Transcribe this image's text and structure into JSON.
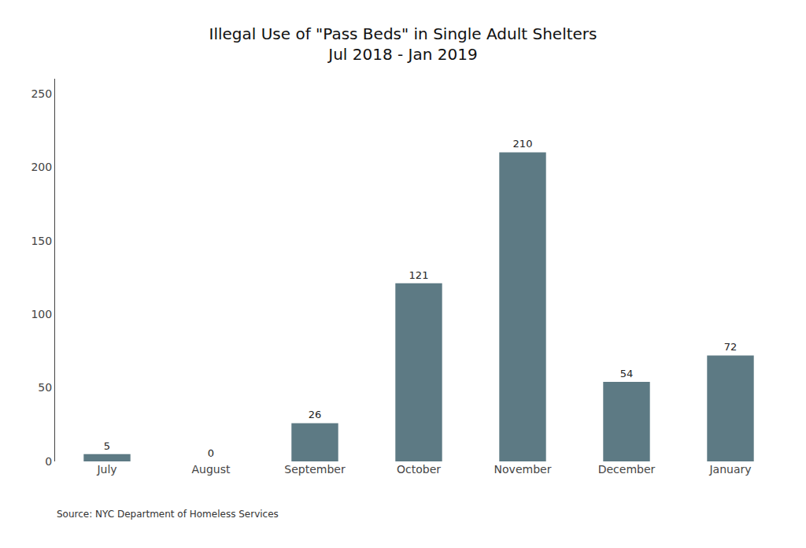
{
  "chart_data": {
    "type": "bar",
    "title": "Illegal Use of \"Pass Beds\" in Single Adult Shelters",
    "subtitle": "Jul 2018 - Jan 2019",
    "categories": [
      "July",
      "August",
      "September",
      "October",
      "November",
      "December",
      "January"
    ],
    "values": [
      5,
      0,
      26,
      121,
      210,
      54,
      72
    ],
    "color": "#5d7a84",
    "ylim": [
      0,
      260
    ],
    "yticks": [
      0,
      50,
      100,
      150,
      200,
      250
    ],
    "grid": false,
    "data_labels": true,
    "annotations": [
      "Source: NYC Department of Homeless Services"
    ]
  }
}
